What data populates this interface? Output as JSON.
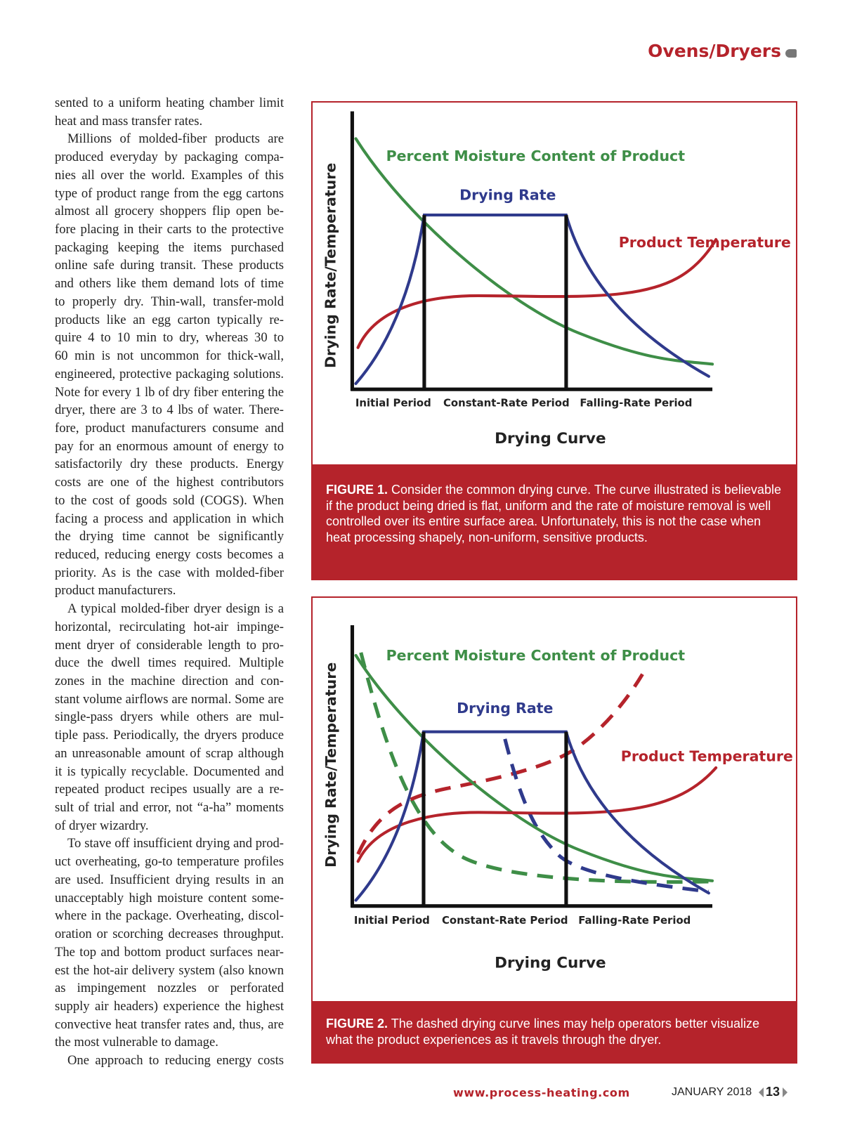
{
  "header": {
    "section": "Ovens/Dryers"
  },
  "body": {
    "paragraphs": [
      [
        "sented to a uniform heating chamber limit",
        "heat and mass transfer rates."
      ],
      [
        "Millions of molded-fiber products are",
        "produced everyday by packaging compa-",
        "nies all over the world. Examples of this",
        "type of product range from the egg cartons",
        "almost all grocery shoppers flip open be-",
        "fore placing in their carts to the protective",
        "packaging keeping the items purchased",
        "online safe during transit. These products",
        "and others like them demand lots of time",
        "to properly dry. Thin-wall, transfer-mold",
        "products like an egg carton typically re-",
        "quire 4 to 10 min to dry, whereas 30 to",
        "60 min is not uncommon for thick-wall,",
        "engineered, protective packaging solutions.",
        "Note for every 1 lb of dry fiber entering the",
        "dryer, there are 3 to 4 lbs of water. There-",
        "fore, product manufacturers consume and",
        "pay for an enormous amount of energy to",
        "satisfactorily dry these products. Energy",
        "costs are one of the highest contributors",
        "to the cost of goods sold (COGS). When",
        "facing a process and application in which",
        "the drying time cannot be significantly",
        "reduced, reducing energy costs becomes a",
        "priority. As is the case with molded-fiber",
        "product manufacturers."
      ],
      [
        "A typical molded-fiber dryer design is a",
        "horizontal, recirculating hot-air impinge-",
        "ment dryer of considerable length to pro-",
        "duce the dwell times required. Multiple",
        "zones in the machine direction and con-",
        "stant volume airflows are normal. Some are",
        "single-pass dryers while others are mul-",
        "tiple pass. Periodically, the dryers produce",
        "an unreasonable amount of scrap although",
        "it is typically recyclable. Documented and",
        "repeated product recipes usually are a re-",
        "sult of trial and error, not “a-ha” moments",
        "of dryer wizardry."
      ],
      [
        "To stave off insufficient drying and prod-",
        "uct overheating, go-to temperature profiles",
        "are used. Insufficient drying results in an",
        "unacceptably high moisture content some-",
        "where in the package. Overheating, discol-",
        "oration or scorching decreases throughput.",
        "The top and bottom product surfaces near-",
        "est the hot-air delivery system (also known",
        "as impingement nozzles or perforated",
        "supply air headers) experience the highest",
        "convective heat transfer rates and, thus, are",
        "the most vulnerable to damage."
      ],
      [
        "One approach to reducing energy costs"
      ]
    ]
  },
  "figures": [
    {
      "y_axis_label": "Drying Rate/Temperature",
      "curve_labels": {
        "moisture": "Percent Moisture Content of Product",
        "rate": "Drying Rate",
        "temperature": "Product Temperature"
      },
      "periods": [
        "Initial Period",
        "Constant-Rate Period",
        "Falling-Rate Period"
      ],
      "x_axis_title": "Drying Curve",
      "caption": {
        "label": "FIGURE 1.",
        "text": "Consider the common drying curve. The curve illustrated is believable if the product being dried is flat, uniform and the rate of moisture removal is well controlled over its entire surface area. Unfortunately, this is not the case when heat processing shapely, non-uniform, sensitive products."
      }
    },
    {
      "y_axis_label": "Drying Rate/Temperature",
      "curve_labels": {
        "moisture": "Percent Moisture Content of Product",
        "rate": "Drying Rate",
        "temperature": "Product Temperature"
      },
      "periods": [
        "Initial Period",
        "Constant-Rate Period",
        "Falling-Rate Period"
      ],
      "x_axis_title": "Drying Curve",
      "caption": {
        "label": "FIGURE 2.",
        "text": "The dashed drying curve lines may help operators better visualize what the product experiences as it travels through the dryer."
      }
    }
  ],
  "footer": {
    "url": "www.process-heating.com",
    "date": "JANUARY 2018",
    "page": "13"
  }
}
